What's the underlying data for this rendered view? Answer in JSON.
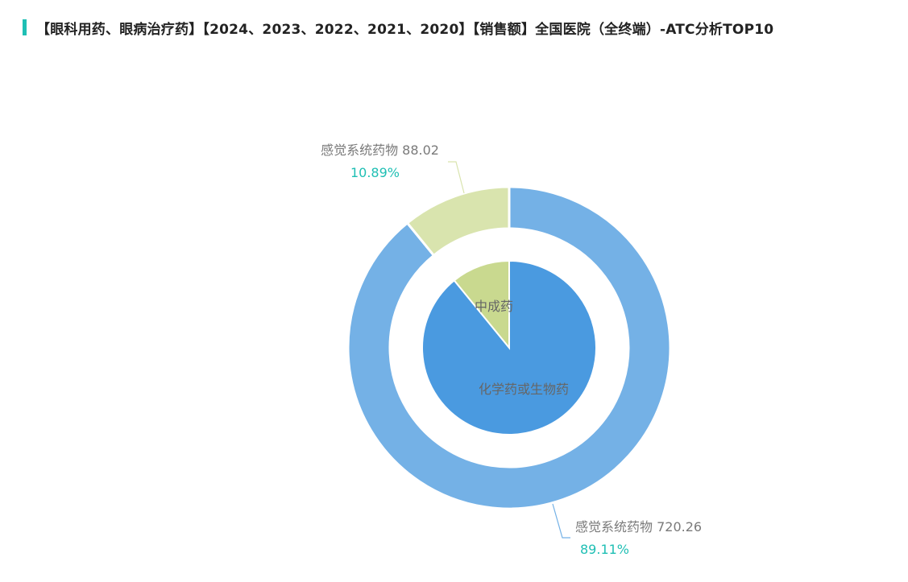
{
  "title": "【眼科用药、眼病治疗药】【2024、2023、2022、2021、2020】【销售额】全国医院（全终端）-ATC分析TOP10",
  "colors": {
    "accent": "#1fbfb4",
    "percent_text": "#1fbfb4"
  },
  "chart_data": {
    "type": "pie",
    "title": "【眼科用药、眼病治疗药】【2024、2023、2022、2021、2020】【销售额】全国医院（全终端）-ATC分析TOP10",
    "inner": {
      "slices": [
        {
          "name": "化学药或生物药",
          "value": 720.26,
          "color": "#4a9ae0"
        },
        {
          "name": "中成药",
          "value": 88.02,
          "color": "#c9d98f"
        }
      ]
    },
    "outer": {
      "slices": [
        {
          "name": "感觉系统药物",
          "value": 720.26,
          "value_label": "720.26",
          "percent": "89.11%",
          "color": "#74b1e6"
        },
        {
          "name": "感觉系统药物",
          "value": 88.02,
          "value_label": "88.02",
          "percent": "10.89%",
          "color": "#d9e4ae"
        }
      ]
    }
  }
}
